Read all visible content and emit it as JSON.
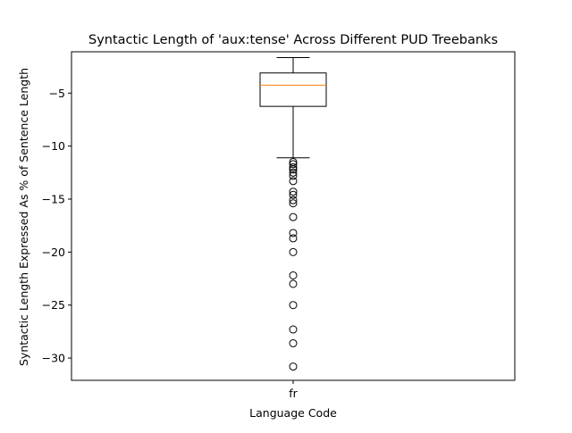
{
  "chart_data": {
    "type": "box",
    "title": "Syntactic Length of 'aux:tense' Across Different PUD Treebanks",
    "xlabel": "Language Code",
    "ylabel": "Syntactic Length Expressed As % of Sentence Length",
    "categories": [
      "fr"
    ],
    "ylim": [
      -32.1,
      -1.1
    ],
    "yticks": [
      -30,
      -25,
      -20,
      -15,
      -10,
      -5
    ],
    "ytick_labels": [
      "−30",
      "−25",
      "−20",
      "−15",
      "−10",
      "−5"
    ],
    "grid": false,
    "legend": "none",
    "boxes": [
      {
        "category": "fr",
        "whisker_low": -11.1,
        "q1": -6.25,
        "median": -4.25,
        "q3": -3.1,
        "whisker_high": -1.65,
        "outliers": [
          -11.5,
          -11.7,
          -12.0,
          -12.2,
          -12.5,
          -12.8,
          -13.3,
          -14.3,
          -14.6,
          -15.1,
          -15.4,
          -16.7,
          -18.2,
          -18.7,
          -20.0,
          -22.2,
          -23.0,
          -25.0,
          -27.3,
          -28.6,
          -30.8
        ]
      }
    ],
    "colors": {
      "box": "#000000",
      "median": "#ff7f0e",
      "outlier": "#000000"
    }
  }
}
